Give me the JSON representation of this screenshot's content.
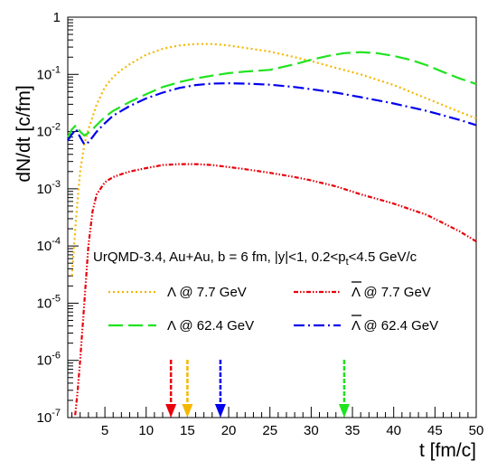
{
  "chart_data": {
    "type": "line",
    "xlabel": "t [fm/c]",
    "ylabel": "dN/dt [c/fm]",
    "xlim": [
      0.5,
      50
    ],
    "ylim": [
      1e-07,
      1
    ],
    "yscale": "log",
    "grid": false,
    "x_ticks": [
      "5",
      "10",
      "15",
      "20",
      "25",
      "30",
      "35",
      "40",
      "45",
      "50"
    ],
    "y_ticks": [
      {
        "base": "",
        "exp": "",
        "text": "1"
      },
      {
        "base": "10",
        "exp": "-1"
      },
      {
        "base": "10",
        "exp": "-2"
      },
      {
        "base": "10",
        "exp": "-3"
      },
      {
        "base": "10",
        "exp": "-4"
      },
      {
        "base": "10",
        "exp": "-5"
      },
      {
        "base": "10",
        "exp": "-6"
      },
      {
        "base": "10",
        "exp": "-7"
      }
    ],
    "annotation": {
      "part1": "UrQMD-3.4, Au+Au, b = 6 fm, |y|<1, 0.2<p",
      "sub": "t",
      "part2": "<4.5 GeV/c"
    },
    "legend_placement": "center",
    "series": [
      {
        "name": "Λ @ 7.7 GeV",
        "label_particle": "Λ",
        "label_suffix": " @ 7.7 GeV",
        "anti": false,
        "color": "#f5b700",
        "dash": "dotted",
        "x": [
          1.0,
          1.5,
          2.0,
          2.5,
          3.0,
          3.5,
          4.0,
          5.0,
          6.0,
          7.0,
          8.0,
          10.0,
          12.0,
          14.0,
          16.0,
          18.0,
          20.0,
          22.0,
          25.0,
          28.0,
          30.0,
          33.0,
          36.0,
          40.0,
          44.0,
          48.0,
          50.0
        ],
        "y": [
          3e-05,
          0.0003,
          0.002,
          0.006,
          0.011,
          0.018,
          0.03,
          0.06,
          0.09,
          0.12,
          0.15,
          0.22,
          0.28,
          0.32,
          0.34,
          0.34,
          0.32,
          0.29,
          0.25,
          0.2,
          0.17,
          0.13,
          0.1,
          0.065,
          0.038,
          0.022,
          0.017
        ]
      },
      {
        "name": "Λ @ 7.7 GeV (anti)",
        "label_particle": "Λ",
        "label_suffix": " @ 7.7 GeV",
        "anti": true,
        "color": "#e8000b",
        "dash": "dashdotdot",
        "x": [
          1.4,
          1.7,
          2.0,
          2.5,
          3.0,
          3.5,
          4.0,
          5.0,
          6.0,
          7.0,
          8.0,
          10.0,
          12.0,
          14.0,
          16.0,
          18.0,
          20.0,
          22.0,
          25.0,
          28.0,
          30.0,
          33.0,
          36.0,
          40.0,
          44.0,
          48.0,
          50.0
        ],
        "y": [
          1.1e-07,
          3e-07,
          1e-06,
          1e-05,
          0.0001,
          0.0004,
          0.0008,
          0.0013,
          0.0016,
          0.0018,
          0.002,
          0.0023,
          0.0026,
          0.0027,
          0.0027,
          0.0026,
          0.0024,
          0.0022,
          0.0019,
          0.0016,
          0.0014,
          0.0011,
          0.0008,
          0.00055,
          0.00035,
          0.00018,
          0.00012
        ]
      },
      {
        "name": "Λ @ 62.4 GeV",
        "label_particle": "Λ",
        "label_suffix": " @ 62.4 GeV",
        "anti": false,
        "color": "#1fe31f",
        "dash": "longdash",
        "x": [
          0.5,
          1.0,
          1.5,
          2.0,
          2.5,
          3.0,
          3.5,
          4.0,
          5.0,
          6.0,
          8.0,
          10.0,
          12.0,
          14.0,
          16.0,
          18.0,
          20.0,
          22.0,
          25.0,
          28.0,
          30.0,
          32.0,
          34.0,
          36.0,
          38.0,
          40.0,
          42.0,
          44.0,
          46.0,
          48.0,
          50.0
        ],
        "y": [
          0.008,
          0.011,
          0.013,
          0.01,
          0.0085,
          0.0095,
          0.011,
          0.013,
          0.018,
          0.023,
          0.033,
          0.045,
          0.06,
          0.073,
          0.085,
          0.095,
          0.105,
          0.112,
          0.12,
          0.15,
          0.18,
          0.21,
          0.235,
          0.245,
          0.235,
          0.21,
          0.18,
          0.145,
          0.11,
          0.085,
          0.068
        ]
      },
      {
        "name": "Λ @ 62.4 GeV (anti)",
        "label_particle": "Λ",
        "label_suffix": " @ 62.4 GeV",
        "anti": true,
        "color": "#0000ee",
        "dash": "dashdot",
        "x": [
          0.5,
          1.0,
          1.5,
          2.0,
          2.5,
          3.0,
          3.5,
          4.0,
          5.0,
          6.0,
          8.0,
          10.0,
          12.0,
          14.0,
          16.0,
          18.0,
          20.0,
          22.0,
          25.0,
          28.0,
          30.0,
          33.0,
          36.0,
          40.0,
          44.0,
          48.0,
          50.0
        ],
        "y": [
          0.007,
          0.009,
          0.011,
          0.008,
          0.006,
          0.0065,
          0.008,
          0.01,
          0.014,
          0.019,
          0.028,
          0.038,
          0.048,
          0.058,
          0.065,
          0.069,
          0.07,
          0.069,
          0.066,
          0.06,
          0.055,
          0.048,
          0.04,
          0.031,
          0.023,
          0.016,
          0.013
        ]
      }
    ],
    "arrows": [
      {
        "series": "Λ @ 7.7 GeV (anti)",
        "x": 13,
        "color": "#e8000b"
      },
      {
        "series": "Λ @ 7.7 GeV",
        "x": 15,
        "color": "#f5b700"
      },
      {
        "series": "Λ @ 62.4 GeV (anti)",
        "x": 19,
        "color": "#0000ee"
      },
      {
        "series": "Λ @ 62.4 GeV",
        "x": 34,
        "color": "#1fe31f"
      }
    ]
  }
}
